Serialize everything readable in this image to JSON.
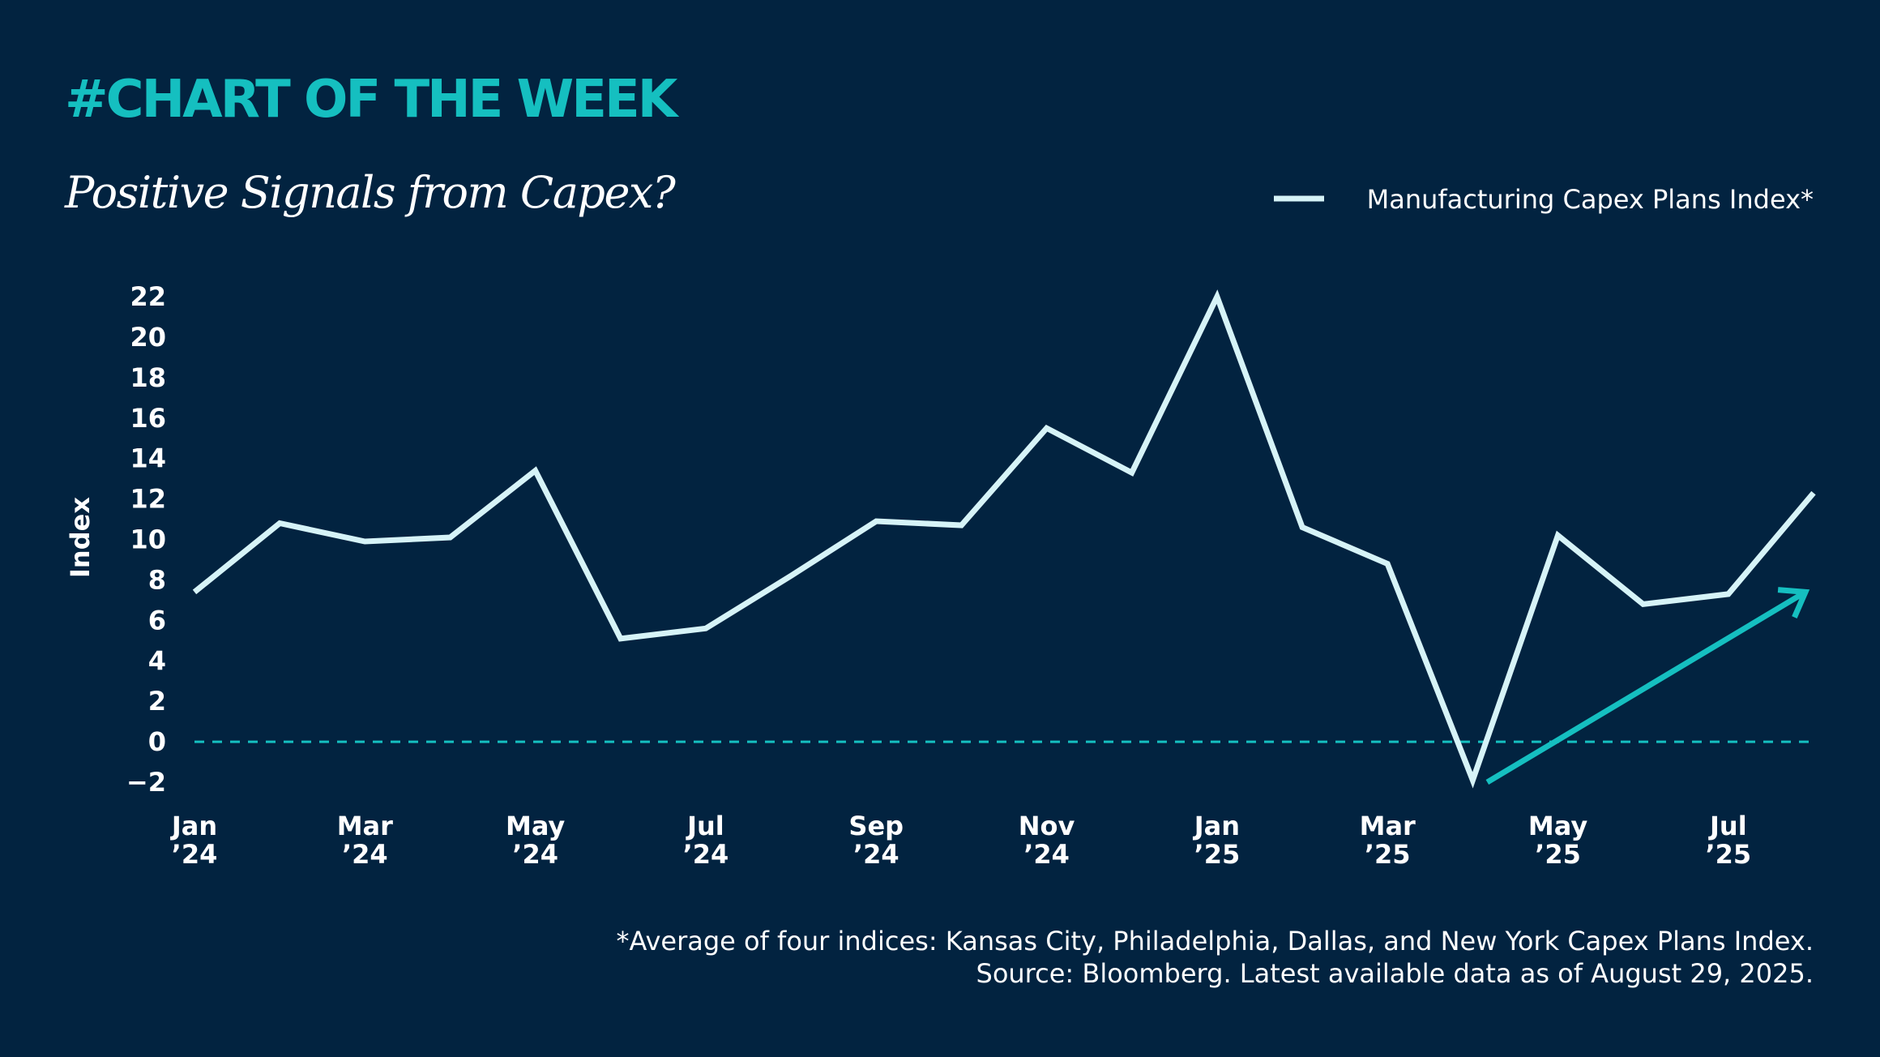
{
  "header": {
    "hashtag": "#CHART OF THE WEEK",
    "subtitle": "Positive Signals from Capex?"
  },
  "footer": {
    "note_line1": "*Average of four indices: Kansas City, Philadelphia, Dallas, and New York Capex Plans Index.",
    "note_line2": "Source: Bloomberg. Latest available data as of August 29, 2025."
  },
  "colors": {
    "background": "#022340",
    "accent": "#15BFC0",
    "series_line": "#D6F3F7",
    "text": "#FFFFFF"
  },
  "chart_data": {
    "type": "line",
    "title": "",
    "xlabel": "",
    "ylabel": "Index",
    "ylim": [
      -2,
      22
    ],
    "yticks": [
      22,
      20,
      18,
      16,
      14,
      12,
      10,
      8,
      6,
      4,
      2,
      0,
      -2
    ],
    "x": [
      "Jan 2024",
      "Feb 2024",
      "Mar 2024",
      "Apr 2024",
      "May 2024",
      "Jun 2024",
      "Jul 2024",
      "Aug 2024",
      "Sep 2024",
      "Oct 2024",
      "Nov 2024",
      "Dec 2024",
      "Jan 2025",
      "Feb 2025",
      "Mar 2025",
      "Apr 2025",
      "May 2025",
      "Jun 2025",
      "Jul 2025",
      "Aug 2025"
    ],
    "xtick_labels": [
      {
        "month": "Jan",
        "year": "’24"
      },
      {
        "month": "Mar",
        "year": "’24"
      },
      {
        "month": "May",
        "year": "’24"
      },
      {
        "month": "Jul",
        "year": "’24"
      },
      {
        "month": "Sep",
        "year": "’24"
      },
      {
        "month": "Nov",
        "year": "’24"
      },
      {
        "month": "Jan",
        "year": "’25"
      },
      {
        "month": "Mar",
        "year": "’25"
      },
      {
        "month": "May",
        "year": "’25"
      },
      {
        "month": "Jul",
        "year": "’25"
      }
    ],
    "series": [
      {
        "name": "Manufacturing Capex Plans Index*",
        "values": [
          7.4,
          10.8,
          9.9,
          10.1,
          13.4,
          5.1,
          5.6,
          8.2,
          10.9,
          10.7,
          15.5,
          13.3,
          22.0,
          10.6,
          8.8,
          -1.9,
          10.2,
          6.8,
          7.3,
          12.3
        ]
      }
    ],
    "reference_line": {
      "y": 0,
      "style": "dashed"
    },
    "annotations": [
      {
        "type": "arrow",
        "description": "upward trend arrow",
        "from": {
          "x": "Apr 2025",
          "y": -2.0
        },
        "to": {
          "x": "Aug 2025",
          "y": 7.4
        }
      }
    ],
    "grid": false,
    "legend_position": "top-right"
  }
}
